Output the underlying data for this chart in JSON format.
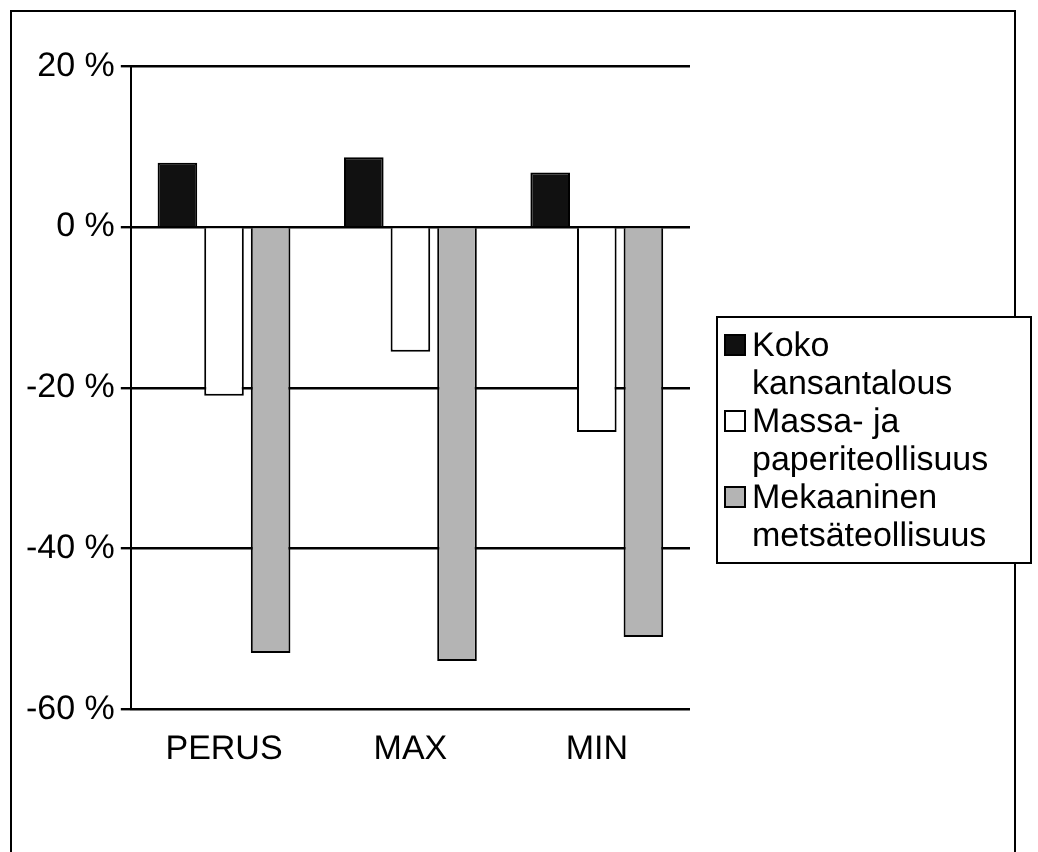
{
  "chart_data": {
    "type": "bar",
    "categories": [
      "PERUS",
      "MAX",
      "MIN"
    ],
    "series": [
      {
        "name": "Koko kansantalous",
        "color": "#111111",
        "values": [
          8,
          8.7,
          6.8
        ]
      },
      {
        "name": "Massa- ja paperiteollisuus",
        "color": "#ffffff",
        "values": [
          -21,
          -15.5,
          -25.5
        ]
      },
      {
        "name": "Mekaaninen metsäteollisuus",
        "color": "#b4b4b4",
        "values": [
          -53,
          -54,
          -51
        ]
      }
    ],
    "ylim": [
      -60,
      20
    ],
    "yticks": [
      {
        "value": 20,
        "label": "20 %"
      },
      {
        "value": 0,
        "label": "0 %"
      },
      {
        "value": -20,
        "label": "-20 %"
      },
      {
        "value": -40,
        "label": "-40 %"
      },
      {
        "value": -60,
        "label": "-60 %"
      }
    ],
    "grid": "y",
    "legend": "right"
  }
}
